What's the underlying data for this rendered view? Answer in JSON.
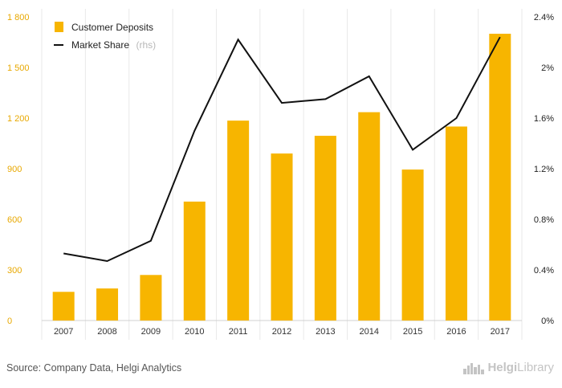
{
  "chart_data": {
    "type": "bar",
    "categories": [
      "2007",
      "2008",
      "2009",
      "2010",
      "2011",
      "2012",
      "2013",
      "2014",
      "2015",
      "2016",
      "2017"
    ],
    "series": [
      {
        "name": "Customer Deposits",
        "type": "bar",
        "axis": "left",
        "color": "#f7b500",
        "values": [
          170,
          190,
          270,
          705,
          1185,
          990,
          1095,
          1235,
          895,
          1150,
          1700
        ]
      },
      {
        "name": "Market Share",
        "name_suffix": "(rhs)",
        "type": "line",
        "axis": "right",
        "color": "#111111",
        "values": [
          0.53,
          0.47,
          0.63,
          1.5,
          2.22,
          1.72,
          1.75,
          1.93,
          1.35,
          1.6,
          2.24
        ]
      }
    ],
    "y_left": {
      "ylim": [
        0,
        1800
      ],
      "ticks": [
        0,
        300,
        600,
        900,
        1200,
        1500,
        1800
      ],
      "tick_labels": [
        "0",
        "300",
        "600",
        "900",
        "1 200",
        "1 500",
        "1 800"
      ],
      "tick_color": "#e8a800"
    },
    "y_right": {
      "ylim": [
        0,
        2.4
      ],
      "ticks": [
        0,
        0.4,
        0.8,
        1.2,
        1.6,
        2.0,
        2.4
      ],
      "tick_labels": [
        "0%",
        "0.4%",
        "0.8%",
        "1.2%",
        "1.6%",
        "2%",
        "2.4%"
      ]
    },
    "grid": "vertical-category-bands",
    "legend_position": "top-left"
  },
  "footer": {
    "source": "Source: Company Data, Helgi Analytics",
    "brand": "Helgi",
    "brand_suffix": "Library"
  },
  "icons": {
    "brand_logo": "city-skyline-icon"
  }
}
